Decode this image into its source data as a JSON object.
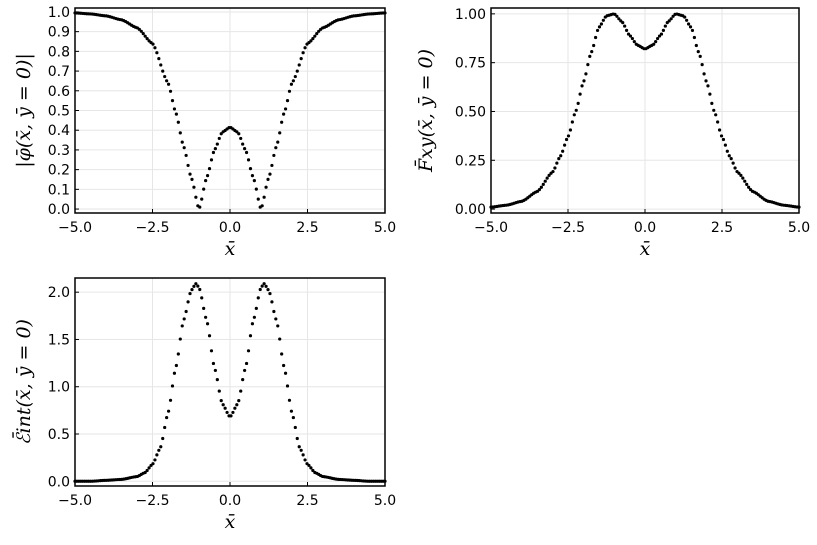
{
  "chart_data": [
    {
      "type": "scatter",
      "name": "phi",
      "ylabel": "|φ̄(x̄, ȳ = 0)|",
      "xlabel": "x̄",
      "xlim": [
        -5,
        5
      ],
      "ylim": [
        0,
        1.0
      ],
      "xticks": [
        "-5.0",
        "-2.5",
        "0.0",
        "2.5",
        "5.0"
      ],
      "yticks": [
        "0.0",
        "0.1",
        "0.2",
        "0.3",
        "0.4",
        "0.5",
        "0.6",
        "0.7",
        "0.8",
        "0.9",
        "1.0"
      ],
      "grid": true,
      "x": [
        -5.0,
        -4.5,
        -4.0,
        -3.5,
        -3.0,
        -2.5,
        -2.0,
        -1.75,
        -1.5,
        -1.25,
        -1.0,
        -0.75,
        -0.5,
        -0.25,
        0.0,
        0.25,
        0.5,
        0.75,
        1.0,
        1.25,
        1.5,
        1.75,
        2.0,
        2.5,
        3.0,
        3.5,
        4.0,
        4.5,
        5.0
      ],
      "y": [
        0.995,
        0.99,
        0.98,
        0.96,
        0.92,
        0.84,
        0.64,
        0.49,
        0.32,
        0.16,
        0.0,
        0.16,
        0.3,
        0.39,
        0.415,
        0.39,
        0.3,
        0.16,
        0.0,
        0.16,
        0.32,
        0.49,
        0.64,
        0.84,
        0.92,
        0.96,
        0.98,
        0.99,
        0.995
      ]
    },
    {
      "type": "scatter",
      "name": "Fxy",
      "ylabel": "F̄xy(x̄, ȳ = 0)",
      "xlabel": "x̄",
      "xlim": [
        -5,
        5
      ],
      "ylim": [
        0,
        1.0
      ],
      "xticks": [
        "-5.0",
        "-2.5",
        "0.0",
        "2.5",
        "5.0"
      ],
      "yticks": [
        "0.00",
        "0.25",
        "0.50",
        "0.75",
        "1.00"
      ],
      "grid": true,
      "x": [
        -5.0,
        -4.5,
        -4.0,
        -3.5,
        -3.0,
        -2.75,
        -2.5,
        -2.25,
        -2.0,
        -1.75,
        -1.5,
        -1.25,
        -1.0,
        -0.75,
        -0.5,
        -0.25,
        0.0,
        0.25,
        0.5,
        0.75,
        1.0,
        1.25,
        1.5,
        1.75,
        2.0,
        2.25,
        2.5,
        2.75,
        3.0,
        3.5,
        4.0,
        4.5,
        5.0
      ],
      "y": [
        0.01,
        0.02,
        0.04,
        0.09,
        0.19,
        0.27,
        0.37,
        0.5,
        0.65,
        0.8,
        0.93,
        0.99,
        1.0,
        0.96,
        0.89,
        0.84,
        0.82,
        0.84,
        0.89,
        0.96,
        1.0,
        0.99,
        0.93,
        0.8,
        0.65,
        0.5,
        0.37,
        0.27,
        0.19,
        0.09,
        0.04,
        0.02,
        0.01
      ]
    },
    {
      "type": "scatter",
      "name": "Eint",
      "ylabel": "ℰ̄int(x̄, ȳ = 0)",
      "xlabel": "x̄",
      "xlim": [
        -5,
        5
      ],
      "ylim": [
        0,
        2.1
      ],
      "xticks": [
        "-5.0",
        "-2.5",
        "0.0",
        "2.5",
        "5.0"
      ],
      "yticks": [
        "0.0",
        "0.5",
        "1.0",
        "1.5",
        "2.0"
      ],
      "grid": true,
      "x": [
        -5.0,
        -4.5,
        -4.0,
        -3.5,
        -3.0,
        -2.75,
        -2.5,
        -2.25,
        -2.0,
        -1.75,
        -1.5,
        -1.25,
        -1.1,
        -1.0,
        -0.75,
        -0.5,
        -0.25,
        0.0,
        0.25,
        0.5,
        0.75,
        1.0,
        1.1,
        1.25,
        1.5,
        1.75,
        2.0,
        2.25,
        2.5,
        2.75,
        3.0,
        3.5,
        4.0,
        4.5,
        5.0
      ],
      "y": [
        0.0,
        0.0,
        0.01,
        0.02,
        0.05,
        0.09,
        0.18,
        0.35,
        0.72,
        1.2,
        1.7,
        2.02,
        2.09,
        2.05,
        1.7,
        1.2,
        0.82,
        0.68,
        0.82,
        1.2,
        1.7,
        2.05,
        2.09,
        2.02,
        1.7,
        1.2,
        0.72,
        0.35,
        0.18,
        0.09,
        0.05,
        0.02,
        0.01,
        0.0,
        0.0
      ]
    }
  ]
}
